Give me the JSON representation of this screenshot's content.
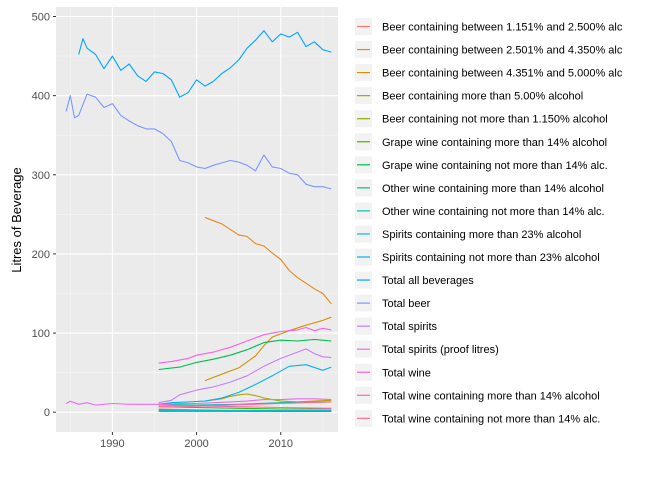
{
  "chart_data": {
    "type": "line",
    "title": "",
    "xlabel": "",
    "ylabel": "Litres of Beverage",
    "xlim": [
      1983.3,
      2016.8
    ],
    "ylim": [
      -25,
      512
    ],
    "x_ticks": [
      1990,
      2000,
      2010
    ],
    "y_ticks": [
      0,
      100,
      200,
      300,
      400,
      500
    ],
    "grid": true,
    "legend_position": "right",
    "series": [
      {
        "name": "Beer containing between 1.151% and 2.500% alc",
        "color": "#F8766D",
        "x": [
          1995.5,
          2000,
          2005,
          2010,
          2016
        ],
        "y": [
          4,
          3,
          2,
          2,
          2
        ]
      },
      {
        "name": "Beer containing between 2.501% and 4.350% alc",
        "color": "#E7851E",
        "x": [
          2001,
          2002,
          2003,
          2004,
          2005,
          2006,
          2007,
          2008,
          2009,
          2010,
          2011,
          2012,
          2013,
          2014,
          2015,
          2016
        ],
        "y": [
          246,
          242,
          238,
          231,
          224,
          222,
          213,
          210,
          201,
          193,
          179,
          170,
          163,
          156,
          150,
          137
        ]
      },
      {
        "name": "Beer containing between 4.351% and 5.000% alc",
        "color": "#D09400",
        "x": [
          2001,
          2003,
          2005,
          2007,
          2008,
          2009,
          2011,
          2013,
          2015,
          2016
        ],
        "y": [
          40,
          48,
          56,
          71,
          84,
          95,
          103,
          110,
          116,
          120
        ]
      },
      {
        "name": "Beer containing more than 5.00% alcohol",
        "color": "#B2A100",
        "x": [
          2001,
          2003,
          2004,
          2005,
          2006,
          2007,
          2008,
          2010,
          2012,
          2014,
          2016
        ],
        "y": [
          14,
          17,
          20,
          22,
          23,
          21,
          18,
          14,
          13,
          14,
          15
        ]
      },
      {
        "name": "Beer containing not more than 1.150% alcohol",
        "color": "#89AC00",
        "x": [
          1995.5,
          2000,
          2005,
          2010,
          2016
        ],
        "y": [
          1,
          1,
          1,
          1,
          1
        ]
      },
      {
        "name": "Grape wine containing more than 14% alcohol",
        "color": "#45B500",
        "x": [
          1995.5,
          2000,
          2005,
          2010,
          2016
        ],
        "y": [
          7,
          6,
          5,
          4,
          4
        ]
      },
      {
        "name": "Grape wine containing not more than 14% alc.",
        "color": "#00BC51",
        "x": [
          1995.5,
          1998,
          2000,
          2002,
          2004,
          2006,
          2008,
          2010,
          2012,
          2014,
          2016
        ],
        "y": [
          54,
          57,
          63,
          67,
          72,
          79,
          88,
          91,
          90,
          92,
          90
        ]
      },
      {
        "name": "Other wine containing more than 14% alcohol",
        "color": "#00C087",
        "x": [
          1995.5,
          2000,
          2005,
          2010,
          2016
        ],
        "y": [
          3,
          2,
          2,
          1,
          1
        ]
      },
      {
        "name": "Other wine containing not more than 14% alc.",
        "color": "#00C0B2",
        "x": [
          1995.5,
          2000,
          2005,
          2010,
          2016
        ],
        "y": [
          10,
          9,
          10,
          12,
          13
        ]
      },
      {
        "name": "Spirits containing more than 23% alcohol",
        "color": "#00BCD6",
        "x": [
          1995.5,
          2000,
          2005,
          2010,
          2016
        ],
        "y": [
          2,
          2,
          2,
          2,
          2
        ]
      },
      {
        "name": "Spirits containing not more than 23% alcohol",
        "color": "#00B3F2",
        "x": [
          1995.5,
          1997,
          1999,
          2001,
          2003,
          2005,
          2007,
          2009,
          2011,
          2013,
          2015,
          2016
        ],
        "y": [
          10,
          12,
          13,
          14,
          18,
          25,
          35,
          46,
          58,
          60,
          53,
          57
        ]
      },
      {
        "name": "Total all beverages",
        "color": "#00A5FF",
        "x": [
          1986,
          1986.5,
          1987,
          1988,
          1989,
          1990,
          1991,
          1992,
          1993,
          1994,
          1995,
          1996,
          1997,
          1998,
          1999,
          2000,
          2001,
          2002,
          2003,
          2004,
          2005,
          2006,
          2007,
          2008,
          2009,
          2010,
          2011,
          2012,
          2013,
          2014,
          2015,
          2016
        ],
        "y": [
          452,
          472,
          460,
          452,
          434,
          450,
          432,
          440,
          425,
          418,
          430,
          428,
          420,
          398,
          404,
          420,
          412,
          418,
          428,
          435,
          445,
          460,
          470,
          482,
          468,
          478,
          474,
          480,
          462,
          468,
          458,
          455
        ]
      },
      {
        "name": "Total beer",
        "color": "#7A97FF",
        "x": [
          1984.5,
          1985,
          1985.5,
          1986,
          1987,
          1988,
          1989,
          1990,
          1991,
          1992,
          1993,
          1994,
          1995,
          1996,
          1997,
          1998,
          1999,
          2000,
          2001,
          2002,
          2003,
          2004,
          2005,
          2006,
          2007,
          2008,
          2009,
          2010,
          2011,
          2012,
          2013,
          2014,
          2015,
          2016
        ],
        "y": [
          380,
          400,
          372,
          375,
          402,
          398,
          385,
          390,
          375,
          368,
          362,
          358,
          358,
          352,
          342,
          318,
          315,
          310,
          308,
          312,
          315,
          318,
          316,
          312,
          305,
          325,
          310,
          308,
          302,
          300,
          288,
          285,
          285,
          282
        ]
      },
      {
        "name": "Total spirits",
        "color": "#C77CFF",
        "x": [
          1995.5,
          1997,
          1998,
          2000,
          2002,
          2004,
          2006,
          2008,
          2010,
          2012,
          2013,
          2014,
          2015,
          2016
        ],
        "y": [
          12,
          15,
          22,
          28,
          32,
          38,
          46,
          58,
          68,
          76,
          80,
          74,
          70,
          69
        ]
      },
      {
        "name": "Total spirits (proof litres)",
        "color": "#E76BF3",
        "x": [
          1984.5,
          1985,
          1986,
          1987,
          1988,
          1990,
          1992,
          1994,
          1996,
          1998,
          2000,
          2002,
          2004,
          2006,
          2008,
          2010,
          2012,
          2014,
          2016
        ],
        "y": [
          11,
          14,
          10,
          12,
          9,
          11,
          10,
          10,
          10,
          11,
          11,
          12,
          13,
          14,
          16,
          16,
          17,
          17,
          16
        ]
      },
      {
        "name": "Total wine",
        "color": "#FA62DB",
        "x": [
          1995.5,
          1997,
          1999,
          2000,
          2002,
          2004,
          2006,
          2008,
          2010,
          2012,
          2013,
          2014,
          2015,
          2016
        ],
        "y": [
          62,
          64,
          68,
          72,
          76,
          82,
          90,
          98,
          102,
          104,
          107,
          103,
          106,
          104
        ]
      },
      {
        "name": "Total wine containing more than 14% alcohol",
        "color": "#FF62BC",
        "x": [
          1995.5,
          2000,
          2005,
          2010,
          2016
        ],
        "y": [
          9,
          8,
          7,
          6,
          5
        ]
      },
      {
        "name": "Total wine containing not more than 14% alc.",
        "color": "#FF6C91",
        "x": [
          1995.5,
          1998,
          2001,
          2004,
          2007,
          2010,
          2013,
          2016
        ],
        "y": [
          7,
          7,
          8,
          9,
          10,
          11,
          12,
          13
        ]
      }
    ]
  }
}
